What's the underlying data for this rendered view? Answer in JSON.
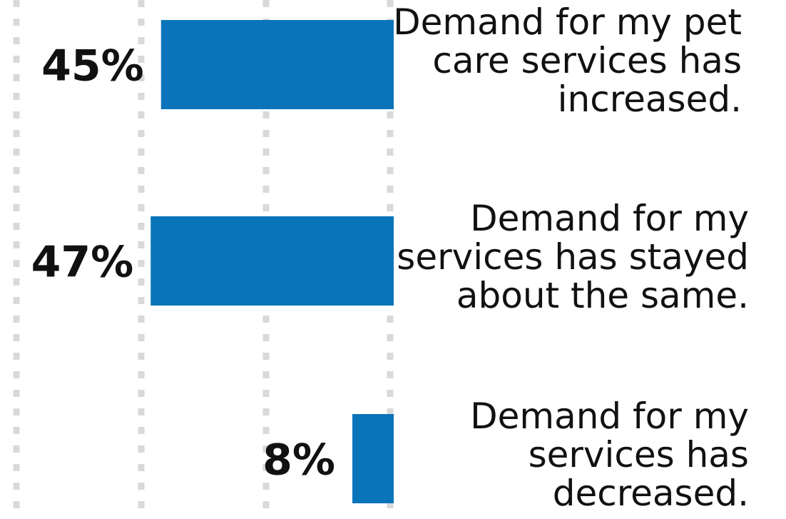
{
  "chart_data": {
    "type": "bar",
    "orientation": "horizontal",
    "direction": "right-to-left",
    "categories": [
      [
        "Demand for my pet",
        "care services has",
        "increased."
      ],
      [
        "Demand for my",
        "services has stayed",
        "about the same."
      ],
      [
        "Demand for my",
        "services has",
        "decreased."
      ]
    ],
    "values": [
      45,
      47,
      8
    ],
    "value_labels": [
      "45%",
      "47%",
      "8%"
    ],
    "unit": "%",
    "xlim": [
      0,
      75
    ],
    "grid": true,
    "legend": "none",
    "colors": {
      "bar": "#0a74bb",
      "text": "#111111",
      "grid": "#d9d9d9"
    }
  }
}
